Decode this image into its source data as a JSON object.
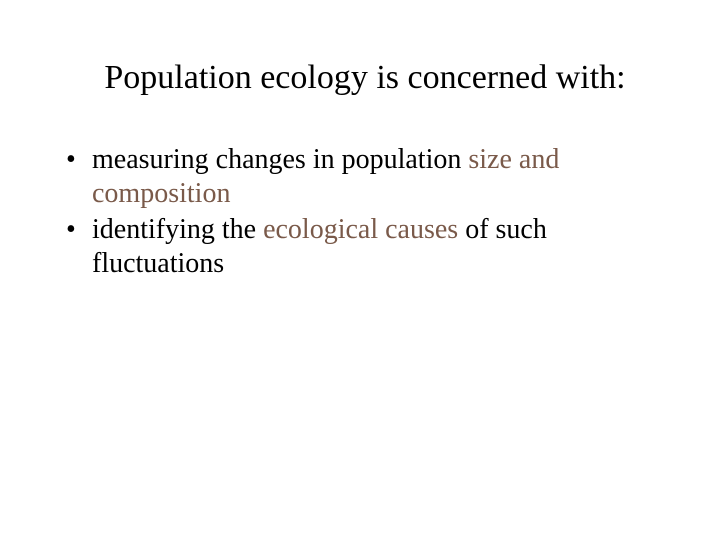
{
  "colors": {
    "background": "#ffffff",
    "text": "#000000",
    "accent": "#7a5a4a"
  },
  "typography": {
    "family": "Times New Roman",
    "title_fontsize_pt": 34,
    "body_fontsize_pt": 28,
    "title_weight": "normal",
    "body_weight": "normal"
  },
  "title": "Population ecology is concerned with:",
  "bullets": [
    {
      "pre": "measuring changes in population ",
      "accent": "size and composition",
      "post": ""
    },
    {
      "pre": "identifying the ",
      "accent": "ecological causes",
      "post": " of such fluctuations"
    }
  ]
}
